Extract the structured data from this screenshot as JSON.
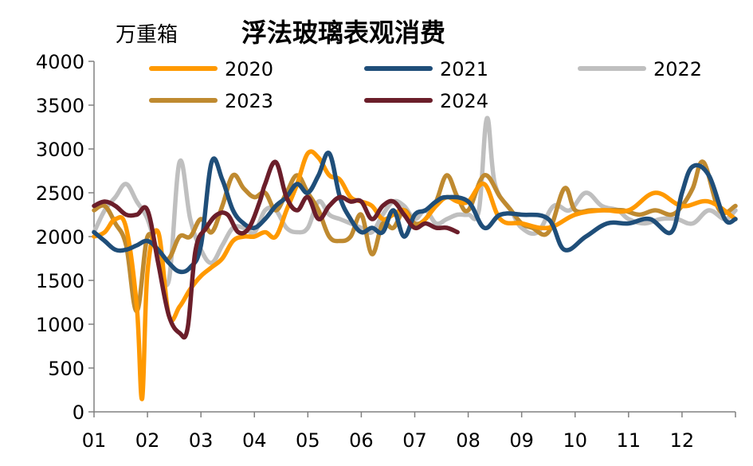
{
  "chart_data": {
    "type": "line",
    "title": "浮法玻璃表观消费",
    "unit_label": "万重箱",
    "xlabel": "",
    "ylabel": "",
    "x_tick_labels": [
      "01",
      "02",
      "03",
      "04",
      "05",
      "06",
      "07",
      "08",
      "09",
      "10",
      "11",
      "12"
    ],
    "ylim": [
      0,
      4000
    ],
    "y_ticks": [
      0,
      500,
      1000,
      1500,
      2000,
      2500,
      3000,
      3500,
      4000
    ],
    "grid": false,
    "legend": "top",
    "series": [
      {
        "name": "2020",
        "color": "#FF9900",
        "x": [
          1.0,
          1.2,
          1.4,
          1.6,
          1.8,
          1.9,
          2.0,
          2.2,
          2.4,
          2.6,
          2.8,
          3.0,
          3.2,
          3.4,
          3.6,
          3.8,
          4.0,
          4.2,
          4.4,
          4.6,
          4.8,
          5.0,
          5.2,
          5.4,
          5.6,
          5.8,
          6.0,
          6.2,
          6.4,
          6.6,
          6.8,
          7.0,
          7.2,
          7.4,
          7.6,
          7.8,
          8.0,
          8.3,
          8.6,
          9.0,
          9.5,
          10.0,
          10.5,
          11.0,
          11.5,
          12.0,
          12.5,
          13.0
        ],
        "values": [
          2000,
          2050,
          2200,
          2100,
          1200,
          150,
          1600,
          2050,
          1100,
          1200,
          1400,
          1550,
          1650,
          1750,
          1950,
          2000,
          2000,
          2050,
          2000,
          2300,
          2600,
          2950,
          2900,
          2700,
          2650,
          2450,
          2400,
          2350,
          2200,
          2250,
          2300,
          2100,
          2200,
          2350,
          2450,
          2400,
          2400,
          2600,
          2200,
          2150,
          2100,
          2250,
          2300,
          2300,
          2500,
          2350,
          2400,
          2200
        ]
      },
      {
        "name": "2021",
        "color": "#1F4E79",
        "x": [
          1.0,
          1.2,
          1.4,
          1.6,
          1.8,
          2.0,
          2.2,
          2.4,
          2.6,
          2.8,
          3.0,
          3.2,
          3.4,
          3.6,
          3.8,
          4.0,
          4.2,
          4.4,
          4.6,
          4.8,
          5.0,
          5.2,
          5.4,
          5.6,
          5.8,
          6.0,
          6.2,
          6.4,
          6.6,
          6.8,
          7.0,
          7.2,
          7.4,
          7.6,
          8.0,
          8.3,
          8.6,
          9.0,
          9.5,
          9.8,
          10.2,
          10.6,
          11.0,
          11.4,
          11.8,
          12.0,
          12.2,
          12.5,
          12.8,
          13.0
        ],
        "values": [
          2050,
          1950,
          1850,
          1850,
          1900,
          1950,
          1850,
          1700,
          1600,
          1650,
          1900,
          2850,
          2650,
          2300,
          2150,
          2100,
          2200,
          2350,
          2450,
          2600,
          2500,
          2700,
          2950,
          2450,
          2200,
          2050,
          2100,
          2050,
          2300,
          2000,
          2250,
          2300,
          2400,
          2450,
          2400,
          2100,
          2250,
          2250,
          2200,
          1850,
          2000,
          2150,
          2150,
          2200,
          2050,
          2500,
          2800,
          2700,
          2200,
          2200
        ]
      },
      {
        "name": "2022",
        "color": "#BFBFBF",
        "x": [
          1.0,
          1.2,
          1.4,
          1.6,
          1.8,
          2.0,
          2.2,
          2.4,
          2.6,
          2.8,
          3.0,
          3.2,
          3.4,
          3.6,
          3.8,
          4.0,
          4.2,
          4.4,
          4.6,
          4.8,
          5.0,
          5.2,
          5.4,
          5.6,
          5.8,
          6.0,
          6.2,
          6.4,
          6.6,
          6.8,
          7.0,
          7.2,
          7.4,
          7.6,
          7.8,
          8.0,
          8.2,
          8.35,
          8.5,
          8.8,
          9.0,
          9.3,
          9.6,
          9.9,
          10.2,
          10.5,
          10.8,
          11.0,
          11.3,
          11.6,
          11.9,
          12.2,
          12.5,
          12.8,
          13.0
        ],
        "values": [
          2050,
          2300,
          2450,
          2600,
          2400,
          2200,
          1800,
          1500,
          2850,
          2200,
          1850,
          1700,
          1900,
          2100,
          2100,
          2050,
          2300,
          2300,
          2100,
          2050,
          2100,
          2400,
          2250,
          2200,
          2150,
          2100,
          2050,
          2250,
          2400,
          2350,
          2200,
          2300,
          2150,
          2200,
          2250,
          2250,
          2300,
          3350,
          2600,
          2300,
          2100,
          2050,
          2350,
          2300,
          2500,
          2350,
          2300,
          2200,
          2150,
          2200,
          2200,
          2150,
          2300,
          2200,
          2300
        ]
      },
      {
        "name": "2023",
        "color": "#BF8A30",
        "x": [
          1.0,
          1.2,
          1.4,
          1.6,
          1.8,
          2.0,
          2.2,
          2.4,
          2.6,
          2.8,
          3.0,
          3.2,
          3.4,
          3.6,
          3.8,
          4.0,
          4.2,
          4.4,
          4.6,
          4.8,
          5.0,
          5.2,
          5.4,
          5.6,
          5.8,
          6.0,
          6.2,
          6.4,
          6.6,
          6.8,
          7.0,
          7.2,
          7.4,
          7.6,
          7.8,
          8.0,
          8.3,
          8.6,
          8.8,
          9.0,
          9.2,
          9.5,
          9.8,
          10.0,
          10.3,
          10.6,
          10.9,
          11.2,
          11.5,
          11.8,
          12.0,
          12.2,
          12.4,
          12.7,
          13.0
        ],
        "values": [
          2300,
          2350,
          2150,
          1900,
          1150,
          2000,
          1800,
          1750,
          2000,
          2000,
          2200,
          2050,
          2350,
          2700,
          2550,
          2450,
          2500,
          2300,
          2500,
          2700,
          2500,
          2300,
          2000,
          1950,
          2000,
          2250,
          1800,
          2150,
          2100,
          2300,
          2150,
          2200,
          2400,
          2700,
          2450,
          2300,
          2700,
          2450,
          2300,
          2150,
          2100,
          2050,
          2550,
          2300,
          2300,
          2300,
          2300,
          2250,
          2300,
          2250,
          2350,
          2550,
          2850,
          2300,
          2350
        ]
      },
      {
        "name": "2024",
        "color": "#6B1E2A",
        "x": [
          1.0,
          1.2,
          1.4,
          1.6,
          1.8,
          2.0,
          2.2,
          2.4,
          2.6,
          2.75,
          2.9,
          3.1,
          3.3,
          3.5,
          3.7,
          3.9,
          4.1,
          4.2,
          4.4,
          4.6,
          4.8,
          5.0,
          5.2,
          5.4,
          5.6,
          5.8,
          6.0,
          6.2,
          6.4,
          6.6,
          6.8,
          7.0,
          7.2,
          7.4,
          7.6,
          7.8
        ],
        "values": [
          2350,
          2400,
          2350,
          2250,
          2250,
          2300,
          1700,
          1100,
          900,
          950,
          1850,
          2100,
          2250,
          2250,
          2050,
          2100,
          2400,
          2600,
          2850,
          2450,
          2300,
          2450,
          2200,
          2350,
          2450,
          2400,
          2400,
          2200,
          2350,
          2400,
          2250,
          2100,
          2150,
          2100,
          2100,
          2050
        ]
      }
    ]
  }
}
